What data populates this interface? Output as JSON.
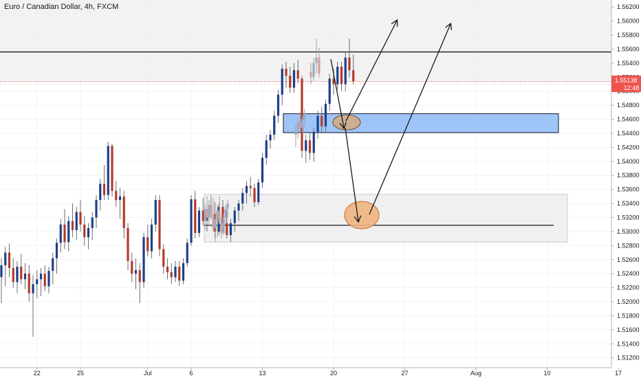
{
  "title": "Euro / Canadian Dollar, 4h, FXCM",
  "colors": {
    "bull": "#1c3f8a",
    "bear": "#b33a2b",
    "wick": "#6b6b6b",
    "grid": "#f0f3fa",
    "price_tag": "#ef5350",
    "zone_blue_fill": "#9fc5f8",
    "zone_grey_fill": "#ececec",
    "ellipse_fill": "#d5a97c"
  },
  "price_tag": {
    "price": "1.55138",
    "countdown": "12:48"
  },
  "chart_data": {
    "type": "candlestick",
    "title": "Euro / Canadian Dollar, 4h, FXCM",
    "ylim": [
      1.5106,
      1.563
    ],
    "y_ticks": [
      "1.56200",
      "1.56000",
      "1.55800",
      "1.55600",
      "1.55400",
      "1.55200",
      "1.55000",
      "1.54800",
      "1.54600",
      "1.54400",
      "1.54200",
      "1.54000",
      "1.53800",
      "1.53600",
      "1.53400",
      "1.53200",
      "1.53000",
      "1.52800",
      "1.52600",
      "1.52400",
      "1.52200",
      "1.52000",
      "1.51800",
      "1.51600",
      "1.51400",
      "1.51200"
    ],
    "x_ticks": [
      {
        "label": "22",
        "i": 9
      },
      {
        "label": "25",
        "i": 20
      },
      {
        "label": "Jul",
        "i": 37
      },
      {
        "label": "6",
        "i": 48
      },
      {
        "label": "13",
        "i": 66
      },
      {
        "label": "20",
        "i": 84
      },
      {
        "label": "27",
        "i": 102
      },
      {
        "label": "Aug",
        "i": 120
      },
      {
        "label": "10",
        "i": 138
      },
      {
        "label": "17",
        "i": 156
      }
    ],
    "candles_ohlc": [
      [
        1.5235,
        1.5262,
        1.5198,
        1.5252
      ],
      [
        1.5252,
        1.5278,
        1.5222,
        1.527
      ],
      [
        1.527,
        1.5283,
        1.5235,
        1.5248
      ],
      [
        1.5248,
        1.5262,
        1.522,
        1.5228
      ],
      [
        1.5228,
        1.5258,
        1.5212,
        1.525
      ],
      [
        1.525,
        1.5268,
        1.5225,
        1.5232
      ],
      [
        1.5232,
        1.5255,
        1.5218,
        1.524
      ],
      [
        1.524,
        1.5252,
        1.52,
        1.5212
      ],
      [
        1.5212,
        1.5238,
        1.515,
        1.5225
      ],
      [
        1.5225,
        1.5245,
        1.5205,
        1.5232
      ],
      [
        1.5232,
        1.5248,
        1.5208,
        1.524
      ],
      [
        1.524,
        1.5252,
        1.5215,
        1.5222
      ],
      [
        1.5222,
        1.525,
        1.5212,
        1.5244
      ],
      [
        1.5244,
        1.527,
        1.5225,
        1.5262
      ],
      [
        1.5262,
        1.529,
        1.524,
        1.5284
      ],
      [
        1.5284,
        1.5318,
        1.527,
        1.531
      ],
      [
        1.531,
        1.5332,
        1.5275,
        1.5285
      ],
      [
        1.5285,
        1.5322,
        1.5272,
        1.5315
      ],
      [
        1.5315,
        1.534,
        1.5292,
        1.5302
      ],
      [
        1.5302,
        1.5335,
        1.5288,
        1.5328
      ],
      [
        1.5328,
        1.5345,
        1.53,
        1.531
      ],
      [
        1.531,
        1.5322,
        1.528,
        1.5292
      ],
      [
        1.5292,
        1.5312,
        1.5275,
        1.5305
      ],
      [
        1.5305,
        1.5328,
        1.5288,
        1.532
      ],
      [
        1.532,
        1.5352,
        1.5305,
        1.5345
      ],
      [
        1.5345,
        1.5375,
        1.533,
        1.5368
      ],
      [
        1.5368,
        1.5395,
        1.5345,
        1.5352
      ],
      [
        1.5352,
        1.5428,
        1.5345,
        1.5422
      ],
      [
        1.5422,
        1.5425,
        1.535,
        1.5358
      ],
      [
        1.5358,
        1.5372,
        1.5335,
        1.5345
      ],
      [
        1.5345,
        1.5362,
        1.5318,
        1.535
      ],
      [
        1.535,
        1.5358,
        1.529,
        1.5305
      ],
      [
        1.5305,
        1.5312,
        1.5245,
        1.5258
      ],
      [
        1.5258,
        1.527,
        1.5228,
        1.524
      ],
      [
        1.524,
        1.5262,
        1.5218,
        1.5245
      ],
      [
        1.5245,
        1.5255,
        1.5198,
        1.5228
      ],
      [
        1.5228,
        1.5298,
        1.522,
        1.5292
      ],
      [
        1.5292,
        1.531,
        1.5265,
        1.5272
      ],
      [
        1.5272,
        1.5318,
        1.5262,
        1.531
      ],
      [
        1.531,
        1.5352,
        1.53,
        1.5345
      ],
      [
        1.5345,
        1.5352,
        1.5265,
        1.5275
      ],
      [
        1.5275,
        1.5282,
        1.524,
        1.525
      ],
      [
        1.525,
        1.5262,
        1.5232,
        1.5242
      ],
      [
        1.5242,
        1.5255,
        1.5225,
        1.5235
      ],
      [
        1.5235,
        1.5258,
        1.5228,
        1.525
      ],
      [
        1.525,
        1.5258,
        1.5222,
        1.523
      ],
      [
        1.523,
        1.5262,
        1.5225,
        1.5255
      ],
      [
        1.5255,
        1.529,
        1.525,
        1.5284
      ],
      [
        1.5284,
        1.5352,
        1.528,
        1.5346
      ],
      [
        1.5346,
        1.5358,
        1.529,
        1.5298
      ],
      [
        1.5298,
        1.5335,
        1.5292,
        1.533
      ],
      [
        1.533,
        1.5348,
        1.5308,
        1.5315
      ],
      [
        1.5315,
        1.5338,
        1.53,
        1.5332
      ],
      [
        1.5332,
        1.535,
        1.5318,
        1.5325
      ],
      [
        1.5325,
        1.5342,
        1.529,
        1.53
      ],
      [
        1.53,
        1.534,
        1.5295,
        1.5335
      ],
      [
        1.5335,
        1.5345,
        1.5305,
        1.5312
      ],
      [
        1.5312,
        1.533,
        1.529,
        1.5295
      ],
      [
        1.5295,
        1.5318,
        1.5285,
        1.5312
      ],
      [
        1.5312,
        1.5335,
        1.53,
        1.533
      ],
      [
        1.533,
        1.5345,
        1.5315,
        1.534
      ],
      [
        1.534,
        1.5362,
        1.533,
        1.5355
      ],
      [
        1.5355,
        1.5372,
        1.534,
        1.5365
      ],
      [
        1.5365,
        1.5378,
        1.535,
        1.5362
      ],
      [
        1.5362,
        1.5368,
        1.5335,
        1.5342
      ],
      [
        1.5342,
        1.5375,
        1.5338,
        1.537
      ],
      [
        1.537,
        1.5412,
        1.5362,
        1.5405
      ],
      [
        1.5405,
        1.5438,
        1.5395,
        1.543
      ],
      [
        1.543,
        1.5445,
        1.5418,
        1.5438
      ],
      [
        1.5438,
        1.5472,
        1.543,
        1.5465
      ],
      [
        1.5465,
        1.5502,
        1.5455,
        1.5495
      ],
      [
        1.5495,
        1.5538,
        1.548,
        1.5532
      ],
      [
        1.5532,
        1.5542,
        1.5505,
        1.5522
      ],
      [
        1.5522,
        1.5535,
        1.5498,
        1.5505
      ],
      [
        1.5505,
        1.554,
        1.5498,
        1.553
      ],
      [
        1.553,
        1.5545,
        1.5512,
        1.5518
      ],
      [
        1.5518,
        1.5522,
        1.5405,
        1.5415
      ],
      [
        1.5415,
        1.5438,
        1.5398,
        1.543
      ],
      [
        1.543,
        1.544,
        1.5402,
        1.5412
      ],
      [
        1.5412,
        1.5448,
        1.54,
        1.5442
      ],
      [
        1.5442,
        1.5472,
        1.5432,
        1.5465
      ],
      [
        1.5465,
        1.5478,
        1.544,
        1.545
      ],
      [
        1.545,
        1.5488,
        1.5442,
        1.5482
      ],
      [
        1.5482,
        1.5525,
        1.5472,
        1.5518
      ],
      [
        1.5518,
        1.5532,
        1.5495,
        1.551
      ],
      [
        1.551,
        1.5542,
        1.5502,
        1.5535
      ],
      [
        1.5535,
        1.5542,
        1.55,
        1.551
      ],
      [
        1.551,
        1.5555,
        1.55,
        1.5548
      ],
      [
        1.5548,
        1.5575,
        1.552,
        1.553
      ],
      [
        1.553,
        1.5552,
        1.551,
        1.5514
      ]
    ],
    "ghost_candles_ohlc": [
      [
        1.5318,
        1.534,
        1.5302,
        1.5332
      ],
      [
        1.5332,
        1.535,
        1.5312,
        1.532
      ],
      [
        1.532,
        1.5345,
        1.5308,
        1.5338
      ],
      [
        1.5338,
        1.5352,
        1.5318,
        1.5325
      ],
      [
        1.5325,
        1.5348,
        1.53,
        1.5305
      ],
      [
        1.5305,
        1.5325,
        1.5285,
        1.5318
      ],
      [
        1.5318,
        1.5338,
        1.5292,
        1.533
      ],
      [
        1.533,
        1.535,
        1.531,
        1.5312
      ],
      [
        1.5312,
        1.532,
        1.529,
        1.5298
      ],
      [
        1.5298,
        1.5325,
        1.5295,
        1.532
      ],
      [
        1.532,
        1.5338,
        1.531,
        1.5332
      ],
      [
        1.5332,
        1.5345,
        1.532,
        1.534
      ],
      [
        1.5438,
        1.5452,
        1.542,
        1.5445
      ],
      [
        1.5445,
        1.5462,
        1.5432,
        1.5455
      ],
      [
        1.5455,
        1.547,
        1.5442,
        1.5448
      ],
      [
        1.5448,
        1.5465,
        1.544,
        1.546
      ],
      [
        1.546,
        1.5475,
        1.545,
        1.5468
      ],
      [
        1.5528,
        1.554,
        1.551,
        1.552
      ],
      [
        1.552,
        1.5548,
        1.5515,
        1.554
      ],
      [
        1.554,
        1.5575,
        1.5525,
        1.5548
      ],
      [
        1.5548,
        1.5562,
        1.552,
        1.5525
      ]
    ],
    "resistance_line": 1.5556,
    "current_price": 1.55138,
    "zones": [
      {
        "name": "supply-zone-top",
        "y0": 1.5513,
        "y1": 1.563,
        "color": "#ececec"
      },
      {
        "name": "demand-zone-blue",
        "y0": 1.5441,
        "y1": 1.5468,
        "color": "#9fc5f8"
      },
      {
        "name": "demand-zone-grey",
        "y0": 1.5285,
        "y1": 1.5353,
        "color": "#ececec"
      }
    ],
    "level_line_grey_zone": 1.5309
  }
}
